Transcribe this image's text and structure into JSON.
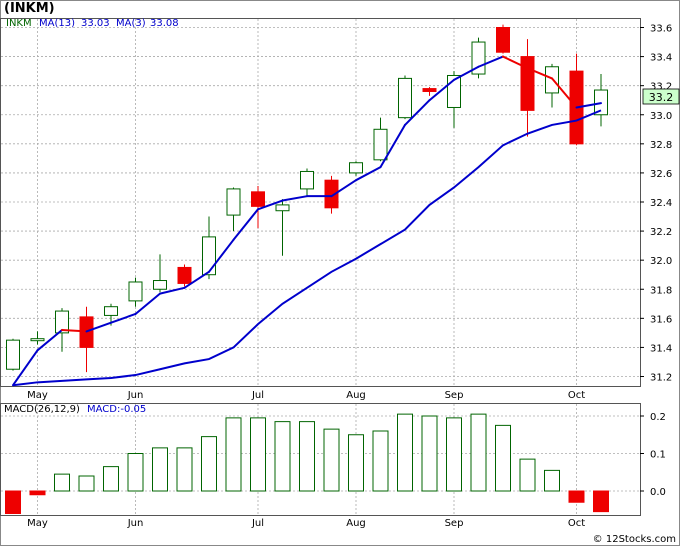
{
  "title": "(INKM)",
  "watermark": "© 12Stocks.com",
  "price_panel": {
    "ticker_label": "INKM",
    "ma13_label": "MA(13)",
    "ma13_value": "33.03",
    "ma3_label": "MA(3)",
    "ma3_value": "33.08",
    "last_price_badge": "33.2"
  },
  "macd_panel": {
    "label": "MACD(26,12,9)",
    "value_label": "MACD:-0.05"
  },
  "colors": {
    "up_candle": "#006400",
    "down_candle": "#ee0000",
    "ma13": "#0000cc",
    "ma3_up": "#0000cc",
    "ma3_down": "#ee0000",
    "grid": "#aaaaaa",
    "macd_pos": "#006400",
    "macd_neg": "#ee0000",
    "badge_bg": "#ccffcc"
  },
  "chart_data": [
    {
      "type": "candlestick",
      "title": "(INKM)",
      "x_tick_labels": [
        "May",
        "Jun",
        "Jul",
        "Aug",
        "Sep",
        "Oct"
      ],
      "x_tick_index": [
        1,
        5,
        10,
        14,
        18,
        23
      ],
      "y_ticks": [
        31.2,
        31.4,
        31.6,
        31.8,
        32.0,
        32.2,
        32.4,
        32.6,
        32.8,
        33.0,
        33.2,
        33.4,
        33.6
      ],
      "ylim": [
        31.08,
        33.7
      ],
      "grid": true,
      "candles": [
        {
          "open": 31.25,
          "close": 31.45,
          "high": 31.46,
          "low": 31.24
        },
        {
          "open": 31.45,
          "close": 31.46,
          "high": 31.51,
          "low": 31.42
        },
        {
          "open": 31.5,
          "close": 31.65,
          "high": 31.67,
          "low": 31.37
        },
        {
          "open": 31.61,
          "close": 31.4,
          "high": 31.68,
          "low": 31.23
        },
        {
          "open": 31.62,
          "close": 31.68,
          "high": 31.7,
          "low": 31.55
        },
        {
          "open": 31.72,
          "close": 31.85,
          "high": 31.88,
          "low": 31.68
        },
        {
          "open": 31.8,
          "close": 31.86,
          "high": 32.04,
          "low": 31.78
        },
        {
          "open": 31.95,
          "close": 31.84,
          "high": 31.97,
          "low": 31.82
        },
        {
          "open": 31.9,
          "close": 32.16,
          "high": 32.3,
          "low": 31.87
        },
        {
          "open": 32.31,
          "close": 32.49,
          "high": 32.5,
          "low": 32.2
        },
        {
          "open": 32.47,
          "close": 32.37,
          "high": 32.51,
          "low": 32.22
        },
        {
          "open": 32.34,
          "close": 32.38,
          "high": 32.42,
          "low": 32.03
        },
        {
          "open": 32.49,
          "close": 32.61,
          "high": 32.63,
          "low": 32.44
        },
        {
          "open": 32.55,
          "close": 32.36,
          "high": 32.58,
          "low": 32.32
        },
        {
          "open": 32.6,
          "close": 32.67,
          "high": 32.68,
          "low": 32.58
        },
        {
          "open": 32.69,
          "close": 32.9,
          "high": 32.98,
          "low": 32.68
        },
        {
          "open": 32.98,
          "close": 33.25,
          "high": 33.27,
          "low": 32.97
        },
        {
          "open": 33.18,
          "close": 33.16,
          "high": 33.19,
          "low": 33.13
        },
        {
          "open": 33.05,
          "close": 33.27,
          "high": 33.3,
          "low": 32.91
        },
        {
          "open": 33.28,
          "close": 33.5,
          "high": 33.53,
          "low": 33.25
        },
        {
          "open": 33.6,
          "close": 33.43,
          "high": 33.62,
          "low": 33.42
        },
        {
          "open": 33.4,
          "close": 33.03,
          "high": 33.52,
          "low": 32.85
        },
        {
          "open": 33.15,
          "close": 33.33,
          "high": 33.35,
          "low": 33.05
        },
        {
          "open": 33.3,
          "close": 32.8,
          "high": 33.42,
          "low": 32.79
        },
        {
          "open": 33.0,
          "close": 33.17,
          "high": 33.28,
          "low": 32.92
        }
      ],
      "series": [
        {
          "name": "MA(13)",
          "values": [
            31.14,
            31.16,
            31.17,
            31.18,
            31.19,
            31.21,
            31.25,
            31.29,
            31.32,
            31.4,
            31.56,
            31.7,
            31.81,
            31.92,
            32.01,
            32.11,
            32.21,
            32.38,
            32.5,
            32.64,
            32.79,
            32.87,
            32.93,
            32.96,
            33.03
          ]
        },
        {
          "name": "MA(3)",
          "values": [
            31.14,
            31.38,
            31.52,
            31.51,
            31.57,
            31.63,
            31.77,
            31.81,
            31.92,
            32.14,
            32.35,
            32.41,
            32.44,
            32.44,
            32.55,
            32.64,
            32.93,
            33.1,
            33.24,
            33.33,
            33.4,
            33.32,
            33.25,
            33.05,
            33.08
          ]
        }
      ]
    },
    {
      "type": "bar",
      "title": "MACD(26,12,9)",
      "x_tick_labels": [
        "May",
        "Jun",
        "Jul",
        "Aug",
        "Sep",
        "Oct"
      ],
      "y_ticks": [
        0.0,
        0.1,
        0.2
      ],
      "ylim": [
        -0.065,
        0.225
      ],
      "series": [
        {
          "name": "MACD",
          "values": [
            -0.06,
            -0.01,
            0.045,
            0.04,
            0.065,
            0.1,
            0.115,
            0.115,
            0.145,
            0.195,
            0.195,
            0.185,
            0.185,
            0.165,
            0.15,
            0.16,
            0.205,
            0.2,
            0.195,
            0.205,
            0.175,
            0.085,
            0.055,
            -0.03,
            -0.055
          ]
        }
      ]
    }
  ]
}
